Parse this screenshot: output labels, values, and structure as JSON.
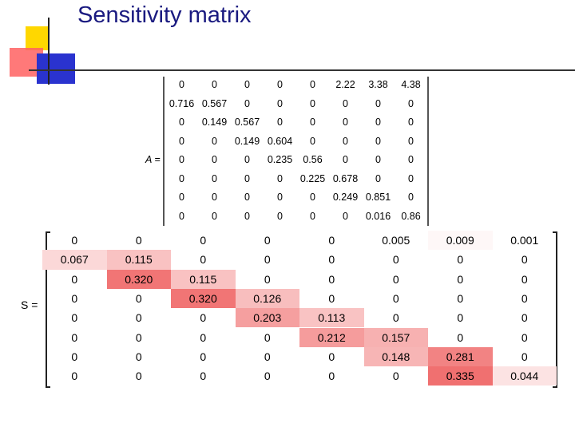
{
  "slide": {
    "title": "Sensitivity matrix"
  },
  "matrix_a": {
    "label": "A =",
    "rows": [
      [
        "0",
        "0",
        "0",
        "0",
        "0",
        "2.22",
        "3.38",
        "4.38"
      ],
      [
        "0.716",
        "0.567",
        "0",
        "0",
        "0",
        "0",
        "0",
        "0"
      ],
      [
        "0",
        "0.149",
        "0.567",
        "0",
        "0",
        "0",
        "0",
        "0"
      ],
      [
        "0",
        "0",
        "0.149",
        "0.604",
        "0",
        "0",
        "0",
        "0"
      ],
      [
        "0",
        "0",
        "0",
        "0.235",
        "0.56",
        "0",
        "0",
        "0"
      ],
      [
        "0",
        "0",
        "0",
        "0",
        "0.225",
        "0.678",
        "0",
        "0"
      ],
      [
        "0",
        "0",
        "0",
        "0",
        "0",
        "0.249",
        "0.851",
        "0"
      ],
      [
        "0",
        "0",
        "0",
        "0",
        "0",
        "0",
        "0.016",
        "0.86"
      ]
    ]
  },
  "matrix_s": {
    "label": "S =",
    "rows": [
      [
        "0",
        "0",
        "0",
        "0",
        "0",
        "0.005",
        "0.009",
        "0.001"
      ],
      [
        "0.067",
        "0.115",
        "0",
        "0",
        "0",
        "0",
        "0",
        "0"
      ],
      [
        "0",
        "0.320",
        "0.115",
        "0",
        "0",
        "0",
        "0",
        "0"
      ],
      [
        "0",
        "0",
        "0.320",
        "0.126",
        "0",
        "0",
        "0",
        "0"
      ],
      [
        "0",
        "0",
        "0",
        "0.203",
        "0.113",
        "0",
        "0",
        "0"
      ],
      [
        "0",
        "0",
        "0",
        "0",
        "0.212",
        "0.157",
        "0",
        "0"
      ],
      [
        "0",
        "0",
        "0",
        "0",
        "0",
        "0.148",
        "0.281",
        "0"
      ],
      [
        "0",
        "0",
        "0",
        "0",
        "0",
        "0",
        "0.335",
        "0.044"
      ]
    ],
    "heat_colors": {
      "zero": "#ffffff",
      "max": "#f07070"
    }
  }
}
